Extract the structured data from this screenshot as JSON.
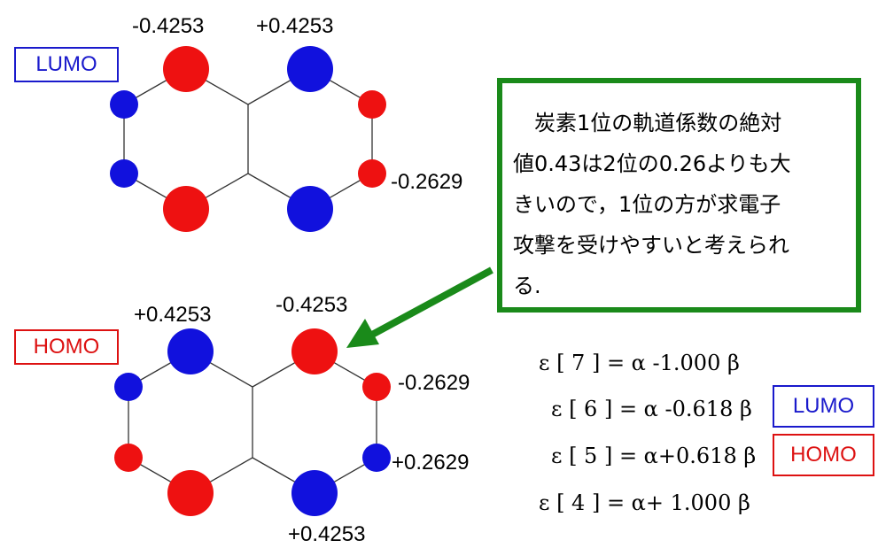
{
  "colors": {
    "positive_lobe": "#1111dd",
    "negative_lobe": "#ee1111",
    "callout_border": "#1a8a1a",
    "lumo_tag": "#1a1acc",
    "homo_tag": "#dd1111"
  },
  "lumo": {
    "tag": "LUMO",
    "labels": {
      "top_left": "-0.4253",
      "top_right": "+0.4253",
      "right": "-0.2629"
    }
  },
  "homo": {
    "tag": "HOMO",
    "labels": {
      "top_left": "+0.4253",
      "top_right": "-0.4253",
      "right_upper": "-0.2629",
      "right_lower": "+0.2629",
      "bottom": "+0.4253"
    }
  },
  "callout": {
    "lines": [
      "　炭素1位の軌道係数の絶対",
      "値0.43は2位の0.26よりも大",
      "きいので，1位の方が求電子",
      "攻撃を受けやすいと考えられ",
      "る."
    ],
    "arrow": "green-arrow-icon"
  },
  "energies": [
    {
      "text": "ε [ 7 ] = α -1.000 β",
      "tag": ""
    },
    {
      "text": "ε [ 6 ] = α -0.618 β",
      "tag": "LUMO"
    },
    {
      "text": "ε [ 5 ] = α+0.618 β",
      "tag": "HOMO"
    },
    {
      "text": "ε [ 4 ] = α+ 1.000 β",
      "tag": ""
    }
  ]
}
